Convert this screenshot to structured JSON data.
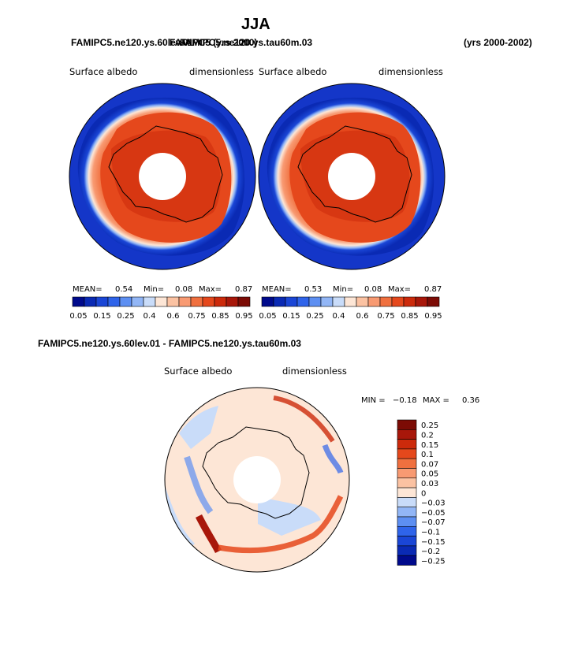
{
  "season_title": "JJA",
  "top_left_header": "FAMIPC5.ne120.ys.60lev.01",
  "top_overlap_header": "FAMIPC5 (yrs 2000)",
  "top_mid_header": "FAMIPC5.ne120.ys.tau60m.03",
  "top_right_header": "(yrs 2000-2002)",
  "panels": [
    {
      "variable": "Surface albedo",
      "units": "dimensionless",
      "mean_label": "MEAN=",
      "mean": "0.54",
      "min_label": "Min=",
      "min": "0.08",
      "max_label": "Max=",
      "max": "0.87"
    },
    {
      "variable": "Surface albedo",
      "units": "dimensionless",
      "mean_label": "MEAN=",
      "mean": "0.53",
      "min_label": "Min=",
      "min": "0.08",
      "max_label": "Max=",
      "max": "0.87"
    }
  ],
  "colorbar_top": {
    "colors": [
      "#000a8c",
      "#0a2ab4",
      "#1a46d6",
      "#2f64ea",
      "#5d8ff2",
      "#92b6f6",
      "#c9dcf9",
      "#fde6d6",
      "#fbc2a2",
      "#f89a72",
      "#f0703f",
      "#e5481c",
      "#cc2a0b",
      "#a8170a",
      "#7c0b05"
    ],
    "labels": [
      "0.05",
      "0.15",
      "0.25",
      "0.4",
      "0.6",
      "0.75",
      "0.85",
      "0.95"
    ]
  },
  "diff_title": "FAMIPC5.ne120.ys.60lev.01 - FAMIPC5.ne120.ys.tau60m.03",
  "diff_panel": {
    "variable": "Surface albedo",
    "units": "dimensionless",
    "min_label": "MIN =",
    "min": "−0.18",
    "max_label": "MAX =",
    "max": "0.36"
  },
  "colorbar_diff": {
    "colors": [
      "#7c0b05",
      "#a8170a",
      "#cc2a0b",
      "#e5481c",
      "#f0703f",
      "#f89a72",
      "#fbc2a2",
      "#fde6d6",
      "#c9dcf9",
      "#92b6f6",
      "#5d8ff2",
      "#2f64ea",
      "#1a46d6",
      "#0a2ab4",
      "#000a8c"
    ],
    "labels": [
      "0.25",
      "0.2",
      "0.15",
      "0.1",
      "0.07",
      "0.05",
      "0.03",
      "0",
      "−0.03",
      "−0.05",
      "−0.07",
      "−0.1",
      "−0.15",
      "−0.2",
      "−0.25"
    ]
  }
}
